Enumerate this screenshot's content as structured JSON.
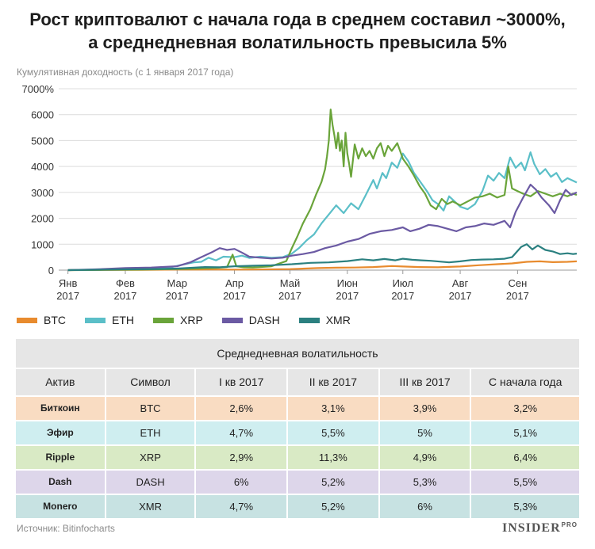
{
  "header": {
    "title_line1": "Рост криптовалют с начала года в среднем составил ~3000%,",
    "title_line2": "а среднедневная волатильность превысила 5%",
    "subtitle": "Кумулятивная доходность (с 1 января 2017 года)"
  },
  "chart_data": {
    "type": "line",
    "title": "Рост криптовалют с начала года в среднем составил ~3000%, а среднедневная волатильность превысила 5%",
    "ylabel": "Кумулятивная доходность (с 1 января 2017 года)",
    "ylim": [
      0,
      7000
    ],
    "y_ticks": [
      "7000%",
      "6000",
      "5000",
      "4000",
      "3000",
      "2000",
      "1000",
      "0"
    ],
    "y_tick_values": [
      7000,
      6000,
      5000,
      4000,
      3000,
      2000,
      1000,
      0
    ],
    "x_ticks": [
      {
        "line1": "Янв",
        "line2": "2017",
        "day": 0
      },
      {
        "line1": "Фев",
        "line2": "2017",
        "day": 31
      },
      {
        "line1": "Мар",
        "line2": "2017",
        "day": 59
      },
      {
        "line1": "Апр",
        "line2": "2017",
        "day": 90
      },
      {
        "line1": "Май",
        "line2": "2017",
        "day": 120
      },
      {
        "line1": "Июн",
        "line2": "2017",
        "day": 151
      },
      {
        "line1": "Июл",
        "line2": "2017",
        "day": 181
      },
      {
        "line1": "Авг",
        "line2": "2017",
        "day": 212
      },
      {
        "line1": "Сен",
        "line2": "2017",
        "day": 243
      }
    ],
    "x_domain": [
      -5,
      275
    ],
    "series": [
      {
        "name": "BTC",
        "color": "#e88b2e",
        "points": [
          [
            0,
            0
          ],
          [
            20,
            5
          ],
          [
            40,
            10
          ],
          [
            59,
            20
          ],
          [
            75,
            25
          ],
          [
            90,
            20
          ],
          [
            100,
            25
          ],
          [
            120,
            40
          ],
          [
            135,
            80
          ],
          [
            145,
            95
          ],
          [
            155,
            100
          ],
          [
            165,
            120
          ],
          [
            175,
            160
          ],
          [
            181,
            140
          ],
          [
            190,
            120
          ],
          [
            200,
            110
          ],
          [
            212,
            140
          ],
          [
            222,
            190
          ],
          [
            232,
            230
          ],
          [
            240,
            260
          ],
          [
            248,
            320
          ],
          [
            255,
            340
          ],
          [
            262,
            310
          ],
          [
            270,
            320
          ],
          [
            275,
            340
          ]
        ]
      },
      {
        "name": "ETH",
        "color": "#5bbfc8",
        "points": [
          [
            0,
            0
          ],
          [
            15,
            20
          ],
          [
            31,
            40
          ],
          [
            45,
            60
          ],
          [
            55,
            100
          ],
          [
            62,
            210
          ],
          [
            68,
            300
          ],
          [
            72,
            320
          ],
          [
            76,
            480
          ],
          [
            80,
            380
          ],
          [
            84,
            520
          ],
          [
            90,
            500
          ],
          [
            94,
            560
          ],
          [
            98,
            470
          ],
          [
            104,
            520
          ],
          [
            110,
            480
          ],
          [
            116,
            500
          ],
          [
            121,
            640
          ],
          [
            125,
            860
          ],
          [
            129,
            1150
          ],
          [
            133,
            1380
          ],
          [
            137,
            1800
          ],
          [
            141,
            2150
          ],
          [
            145,
            2500
          ],
          [
            149,
            2200
          ],
          [
            153,
            2580
          ],
          [
            157,
            2350
          ],
          [
            161,
            2900
          ],
          [
            165,
            3480
          ],
          [
            167,
            3150
          ],
          [
            170,
            3750
          ],
          [
            172,
            3550
          ],
          [
            175,
            4150
          ],
          [
            178,
            3950
          ],
          [
            181,
            4500
          ],
          [
            184,
            4200
          ],
          [
            187,
            3750
          ],
          [
            190,
            3450
          ],
          [
            194,
            3050
          ],
          [
            197,
            2700
          ],
          [
            200,
            2550
          ],
          [
            203,
            2300
          ],
          [
            206,
            2850
          ],
          [
            209,
            2650
          ],
          [
            212,
            2450
          ],
          [
            216,
            2350
          ],
          [
            220,
            2550
          ],
          [
            224,
            3050
          ],
          [
            227,
            3650
          ],
          [
            230,
            3450
          ],
          [
            233,
            3750
          ],
          [
            236,
            3550
          ],
          [
            239,
            4350
          ],
          [
            242,
            3950
          ],
          [
            245,
            4150
          ],
          [
            247,
            3850
          ],
          [
            250,
            4550
          ],
          [
            252,
            4100
          ],
          [
            255,
            3700
          ],
          [
            258,
            3900
          ],
          [
            261,
            3600
          ],
          [
            264,
            3750
          ],
          [
            267,
            3400
          ],
          [
            270,
            3550
          ],
          [
            273,
            3450
          ],
          [
            275,
            3380
          ]
        ]
      },
      {
        "name": "XRP",
        "color": "#6aa43a",
        "points": [
          [
            0,
            0
          ],
          [
            20,
            10
          ],
          [
            40,
            20
          ],
          [
            59,
            40
          ],
          [
            70,
            60
          ],
          [
            80,
            90
          ],
          [
            86,
            120
          ],
          [
            89,
            600
          ],
          [
            91,
            150
          ],
          [
            95,
            110
          ],
          [
            100,
            100
          ],
          [
            110,
            150
          ],
          [
            118,
            350
          ],
          [
            121,
            850
          ],
          [
            124,
            1300
          ],
          [
            127,
            1800
          ],
          [
            131,
            2350
          ],
          [
            134,
            2900
          ],
          [
            137,
            3400
          ],
          [
            139,
            3900
          ],
          [
            140,
            4400
          ],
          [
            141,
            5000
          ],
          [
            142,
            6200
          ],
          [
            143,
            5600
          ],
          [
            144,
            5200
          ],
          [
            145,
            4700
          ],
          [
            146,
            5300
          ],
          [
            147,
            4600
          ],
          [
            148,
            5000
          ],
          [
            149,
            4000
          ],
          [
            150,
            5300
          ],
          [
            151,
            4500
          ],
          [
            152,
            4100
          ],
          [
            153,
            3600
          ],
          [
            155,
            4850
          ],
          [
            157,
            4300
          ],
          [
            159,
            4700
          ],
          [
            161,
            4400
          ],
          [
            163,
            4600
          ],
          [
            165,
            4300
          ],
          [
            167,
            4700
          ],
          [
            169,
            4900
          ],
          [
            171,
            4400
          ],
          [
            173,
            4800
          ],
          [
            175,
            4600
          ],
          [
            178,
            4900
          ],
          [
            181,
            4300
          ],
          [
            184,
            4000
          ],
          [
            187,
            3650
          ],
          [
            190,
            3250
          ],
          [
            193,
            2950
          ],
          [
            196,
            2500
          ],
          [
            199,
            2350
          ],
          [
            202,
            2750
          ],
          [
            205,
            2550
          ],
          [
            208,
            2650
          ],
          [
            212,
            2500
          ],
          [
            216,
            2650
          ],
          [
            220,
            2800
          ],
          [
            224,
            2850
          ],
          [
            228,
            2950
          ],
          [
            232,
            2800
          ],
          [
            236,
            2900
          ],
          [
            238,
            4000
          ],
          [
            240,
            3150
          ],
          [
            243,
            3050
          ],
          [
            246,
            2950
          ],
          [
            250,
            2850
          ],
          [
            254,
            3050
          ],
          [
            258,
            2950
          ],
          [
            262,
            2850
          ],
          [
            266,
            2950
          ],
          [
            270,
            2850
          ],
          [
            273,
            2950
          ],
          [
            275,
            2900
          ]
        ]
      },
      {
        "name": "DASH",
        "color": "#6b5aa3",
        "points": [
          [
            0,
            0
          ],
          [
            15,
            30
          ],
          [
            31,
            80
          ],
          [
            45,
            100
          ],
          [
            59,
            150
          ],
          [
            66,
            300
          ],
          [
            72,
            500
          ],
          [
            78,
            700
          ],
          [
            82,
            850
          ],
          [
            86,
            780
          ],
          [
            90,
            820
          ],
          [
            94,
            680
          ],
          [
            98,
            520
          ],
          [
            104,
            480
          ],
          [
            110,
            450
          ],
          [
            116,
            480
          ],
          [
            121,
            560
          ],
          [
            127,
            620
          ],
          [
            133,
            700
          ],
          [
            139,
            850
          ],
          [
            145,
            950
          ],
          [
            151,
            1100
          ],
          [
            157,
            1200
          ],
          [
            163,
            1400
          ],
          [
            169,
            1500
          ],
          [
            175,
            1550
          ],
          [
            181,
            1650
          ],
          [
            185,
            1500
          ],
          [
            190,
            1600
          ],
          [
            195,
            1750
          ],
          [
            200,
            1700
          ],
          [
            205,
            1600
          ],
          [
            210,
            1500
          ],
          [
            215,
            1650
          ],
          [
            220,
            1700
          ],
          [
            225,
            1800
          ],
          [
            230,
            1750
          ],
          [
            236,
            1900
          ],
          [
            239,
            1650
          ],
          [
            242,
            2250
          ],
          [
            246,
            2800
          ],
          [
            250,
            3300
          ],
          [
            253,
            3100
          ],
          [
            256,
            2800
          ],
          [
            260,
            2500
          ],
          [
            263,
            2200
          ],
          [
            266,
            2700
          ],
          [
            269,
            3100
          ],
          [
            272,
            2900
          ],
          [
            275,
            3000
          ]
        ]
      },
      {
        "name": "XMR",
        "color": "#2b8080",
        "points": [
          [
            0,
            0
          ],
          [
            15,
            15
          ],
          [
            31,
            30
          ],
          [
            45,
            40
          ],
          [
            59,
            60
          ],
          [
            66,
            90
          ],
          [
            74,
            120
          ],
          [
            82,
            110
          ],
          [
            90,
            150
          ],
          [
            100,
            170
          ],
          [
            110,
            190
          ],
          [
            121,
            230
          ],
          [
            131,
            280
          ],
          [
            141,
            300
          ],
          [
            151,
            350
          ],
          [
            159,
            420
          ],
          [
            165,
            380
          ],
          [
            171,
            430
          ],
          [
            177,
            380
          ],
          [
            181,
            440
          ],
          [
            186,
            400
          ],
          [
            191,
            380
          ],
          [
            196,
            360
          ],
          [
            201,
            330
          ],
          [
            206,
            300
          ],
          [
            212,
            340
          ],
          [
            218,
            390
          ],
          [
            224,
            410
          ],
          [
            230,
            420
          ],
          [
            236,
            440
          ],
          [
            240,
            500
          ],
          [
            245,
            900
          ],
          [
            248,
            1000
          ],
          [
            251,
            800
          ],
          [
            254,
            950
          ],
          [
            258,
            780
          ],
          [
            262,
            720
          ],
          [
            266,
            620
          ],
          [
            270,
            650
          ],
          [
            273,
            620
          ],
          [
            275,
            640
          ]
        ]
      }
    ]
  },
  "legend": {
    "items": [
      {
        "label": "BTC",
        "color": "#e88b2e"
      },
      {
        "label": "ETH",
        "color": "#5bbfc8"
      },
      {
        "label": "XRP",
        "color": "#6aa43a"
      },
      {
        "label": "DASH",
        "color": "#6b5aa3"
      },
      {
        "label": "XMR",
        "color": "#2b8080"
      }
    ]
  },
  "table": {
    "title": "Среднедневная волатильность",
    "columns": [
      "Актив",
      "Символ",
      "I кв 2017",
      "II кв 2017",
      "III кв 2017",
      "С начала года"
    ],
    "rows": [
      {
        "bg": "#f9dcc2",
        "cells": [
          "Биткоин",
          "BTC",
          "2,6%",
          "3,1%",
          "3,9%",
          "3,2%"
        ]
      },
      {
        "bg": "#cfeef0",
        "cells": [
          "Эфир",
          "ETH",
          "4,7%",
          "5,5%",
          "5%",
          "5,1%"
        ]
      },
      {
        "bg": "#d9eac5",
        "cells": [
          "Ripple",
          "XRP",
          "2,9%",
          "11,3%",
          "4,9%",
          "6,4%"
        ]
      },
      {
        "bg": "#ddd6ea",
        "cells": [
          "Dash",
          "DASH",
          "6%",
          "5,2%",
          "5,3%",
          "5,5%"
        ]
      },
      {
        "bg": "#c7e2e2",
        "cells": [
          "Monero",
          "XMR",
          "4,7%",
          "5,2%",
          "6%",
          "5,3%"
        ]
      }
    ]
  },
  "footer": {
    "source": "Источник: Bitinfocharts",
    "logo": "INSIDER",
    "logo_pro": "PRO"
  }
}
